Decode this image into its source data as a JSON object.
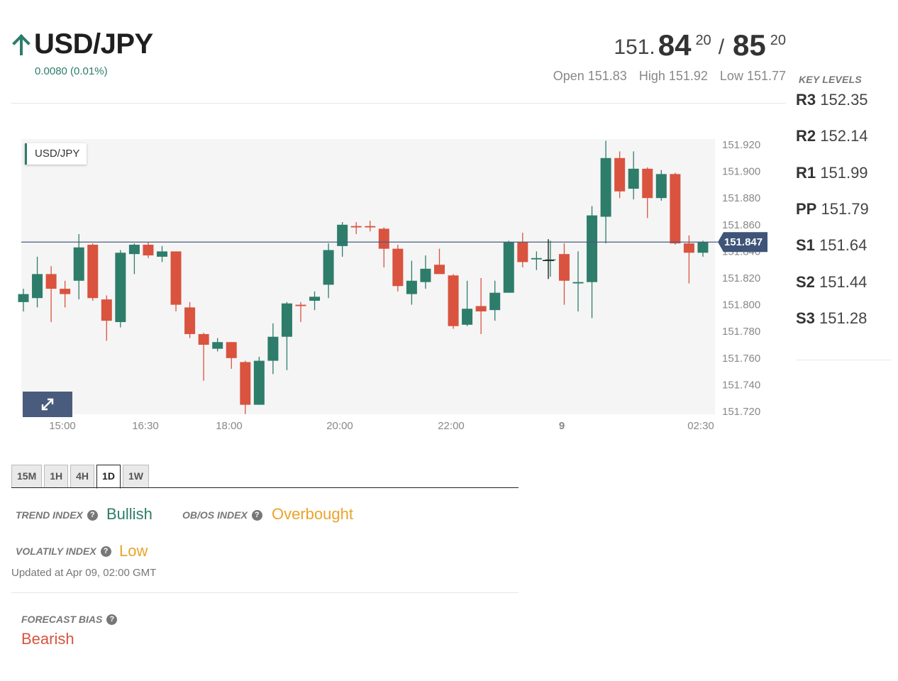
{
  "header": {
    "pair": "USD/JPY",
    "change": "0.0080 (0.01%)",
    "direction_icon": "arrow-up-icon"
  },
  "quote": {
    "bid_base": "151.",
    "bid_big": "84",
    "bid_sup": "20",
    "separator": "/",
    "ask_big": "85",
    "ask_sup": "20"
  },
  "ohl": {
    "open": "Open 151.83",
    "high": "High 151.92",
    "low": "Low 151.77"
  },
  "key_levels": {
    "title": "KEY LEVELS",
    "items": [
      {
        "name": "R3",
        "value": "152.35"
      },
      {
        "name": "R2",
        "value": "152.14"
      },
      {
        "name": "R1",
        "value": "151.99"
      },
      {
        "name": "PP",
        "value": "151.79"
      },
      {
        "name": "S1",
        "value": "151.64"
      },
      {
        "name": "S2",
        "value": "151.44"
      },
      {
        "name": "S3",
        "value": "151.28"
      }
    ]
  },
  "chart": {
    "tag": "USD/JPY",
    "expand_icon": "expand-icon",
    "current_price": "151.847"
  },
  "chart_data": {
    "type": "candlestick",
    "title": "USD/JPY",
    "ylim": [
      151.715,
      151.925
    ],
    "y_ticks": [
      "151.920",
      "151.900",
      "151.880",
      "151.860",
      "151.840",
      "151.820",
      "151.800",
      "151.780",
      "151.760",
      "151.740",
      "151.720"
    ],
    "x_ticks": [
      "15:00",
      "16:30",
      "18:00",
      "20:00",
      "22:00",
      "9",
      "02:30"
    ],
    "current_price": 151.847,
    "grid": false,
    "colors": {
      "up": "#2d7d6a",
      "down": "#d9533f",
      "price_line": "#4a5c7d"
    },
    "candles": [
      {
        "o": 151.802,
        "h": 151.812,
        "l": 151.795,
        "c": 151.808
      },
      {
        "o": 151.805,
        "h": 151.836,
        "l": 151.798,
        "c": 151.823
      },
      {
        "o": 151.823,
        "h": 151.829,
        "l": 151.787,
        "c": 151.812
      },
      {
        "o": 151.812,
        "h": 151.818,
        "l": 151.798,
        "c": 151.808
      },
      {
        "o": 151.818,
        "h": 151.853,
        "l": 151.804,
        "c": 151.843
      },
      {
        "o": 151.845,
        "h": 151.846,
        "l": 151.803,
        "c": 151.805
      },
      {
        "o": 151.804,
        "h": 151.807,
        "l": 151.773,
        "c": 151.788
      },
      {
        "o": 151.787,
        "h": 151.841,
        "l": 151.783,
        "c": 151.839
      },
      {
        "o": 151.838,
        "h": 151.846,
        "l": 151.823,
        "c": 151.845
      },
      {
        "o": 151.845,
        "h": 151.847,
        "l": 151.835,
        "c": 151.837
      },
      {
        "o": 151.836,
        "h": 151.844,
        "l": 151.832,
        "c": 151.84
      },
      {
        "o": 151.84,
        "h": 151.84,
        "l": 151.795,
        "c": 151.8
      },
      {
        "o": 151.798,
        "h": 151.802,
        "l": 151.775,
        "c": 151.778
      },
      {
        "o": 151.778,
        "h": 151.779,
        "l": 151.743,
        "c": 151.77
      },
      {
        "o": 151.767,
        "h": 151.775,
        "l": 151.765,
        "c": 151.772
      },
      {
        "o": 151.772,
        "h": 151.772,
        "l": 151.752,
        "c": 151.76
      },
      {
        "o": 151.757,
        "h": 151.758,
        "l": 151.718,
        "c": 151.725
      },
      {
        "o": 151.725,
        "h": 151.761,
        "l": 151.725,
        "c": 151.758
      },
      {
        "o": 151.758,
        "h": 151.786,
        "l": 151.748,
        "c": 151.776
      },
      {
        "o": 151.776,
        "h": 151.802,
        "l": 151.751,
        "c": 151.801
      },
      {
        "o": 151.8,
        "h": 151.802,
        "l": 151.787,
        "c": 151.799
      },
      {
        "o": 151.803,
        "h": 151.81,
        "l": 151.796,
        "c": 151.806
      },
      {
        "o": 151.815,
        "h": 151.846,
        "l": 151.805,
        "c": 151.841
      },
      {
        "o": 151.844,
        "h": 151.862,
        "l": 151.836,
        "c": 151.86
      },
      {
        "o": 151.859,
        "h": 151.862,
        "l": 151.853,
        "c": 151.858
      },
      {
        "o": 151.859,
        "h": 151.863,
        "l": 151.855,
        "c": 151.858
      },
      {
        "o": 151.857,
        "h": 151.858,
        "l": 151.828,
        "c": 151.842
      },
      {
        "o": 151.842,
        "h": 151.845,
        "l": 151.81,
        "c": 151.814
      },
      {
        "o": 151.808,
        "h": 151.833,
        "l": 151.8,
        "c": 151.818
      },
      {
        "o": 151.817,
        "h": 151.837,
        "l": 151.812,
        "c": 151.827
      },
      {
        "o": 151.83,
        "h": 151.842,
        "l": 151.824,
        "c": 151.823
      },
      {
        "o": 151.822,
        "h": 151.823,
        "l": 151.782,
        "c": 151.784
      },
      {
        "o": 151.785,
        "h": 151.818,
        "l": 151.784,
        "c": 151.797
      },
      {
        "o": 151.799,
        "h": 151.82,
        "l": 151.778,
        "c": 151.795
      },
      {
        "o": 151.796,
        "h": 151.818,
        "l": 151.788,
        "c": 151.809
      },
      {
        "o": 151.809,
        "h": 151.848,
        "l": 151.809,
        "c": 151.847
      },
      {
        "o": 151.847,
        "h": 151.854,
        "l": 151.828,
        "c": 151.832
      },
      {
        "o": 151.834,
        "h": 151.84,
        "l": 151.826,
        "c": 151.835
      },
      {
        "o": 151.834,
        "h": 151.848,
        "l": 151.821,
        "c": 151.834
      },
      {
        "o": 151.838,
        "h": 151.846,
        "l": 151.8,
        "c": 151.818
      },
      {
        "o": 151.816,
        "h": 151.84,
        "l": 151.795,
        "c": 151.817
      },
      {
        "o": 151.817,
        "h": 151.874,
        "l": 151.79,
        "c": 151.867
      },
      {
        "o": 151.866,
        "h": 151.923,
        "l": 151.846,
        "c": 151.91
      },
      {
        "o": 151.91,
        "h": 151.915,
        "l": 151.88,
        "c": 151.885
      },
      {
        "o": 151.887,
        "h": 151.915,
        "l": 151.879,
        "c": 151.902
      },
      {
        "o": 151.902,
        "h": 151.903,
        "l": 151.865,
        "c": 151.88
      },
      {
        "o": 151.88,
        "h": 151.901,
        "l": 151.878,
        "c": 151.898
      },
      {
        "o": 151.898,
        "h": 151.899,
        "l": 151.845,
        "c": 151.846
      },
      {
        "o": 151.846,
        "h": 151.852,
        "l": 151.816,
        "c": 151.839
      },
      {
        "o": 151.839,
        "h": 151.848,
        "l": 151.836,
        "c": 151.847
      }
    ]
  },
  "timeframes": {
    "items": [
      "15M",
      "1H",
      "4H",
      "1D",
      "1W"
    ],
    "active": "1D"
  },
  "indices": {
    "trend_label": "TREND INDEX",
    "trend_value": "Bullish",
    "obos_label": "OB/OS INDEX",
    "obos_value": "Overbought",
    "volatility_label": "VOLATILY INDEX",
    "volatility_value": "Low",
    "help_icon": "question-circle-icon",
    "updated": "Updated at Apr 09, 02:00 GMT"
  },
  "forecast": {
    "label": "FORECAST BIAS",
    "value": "Bearish"
  }
}
